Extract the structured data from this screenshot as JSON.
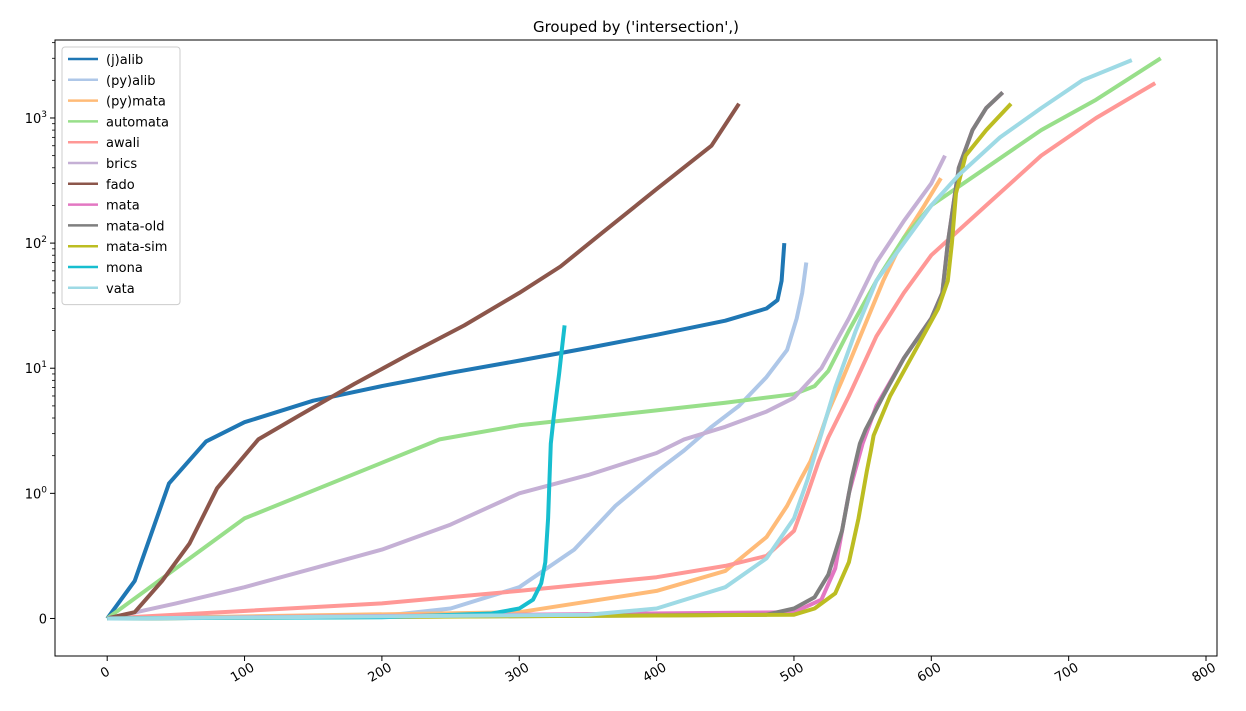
{
  "chart_data": {
    "type": "line",
    "title": "Grouped by ('intersection',)",
    "xlabel": "",
    "ylabel": "",
    "xlim": [
      -38,
      808
    ],
    "x_ticks": [
      0,
      100,
      200,
      300,
      400,
      500,
      600,
      700,
      800
    ],
    "x_tick_labels": [
      "0",
      "100",
      "200",
      "300",
      "400",
      "500",
      "600",
      "700",
      "800"
    ],
    "y_scale": "symlog",
    "y_linthresh": 1,
    "ylim": [
      -0.3,
      4200
    ],
    "y_ticks": [
      0,
      1,
      10,
      100,
      1000
    ],
    "y_tick_labels": [
      "0",
      "10^0",
      "10^1",
      "10^2",
      "10^3"
    ],
    "grid": false,
    "legend_position": "upper-left",
    "series": [
      {
        "name": "(j)alib",
        "color": "#1f77b4",
        "x": [
          0,
          20,
          45,
          72,
          100,
          150,
          200,
          250,
          300,
          350,
          400,
          450,
          480,
          488,
          491,
          493
        ],
        "y": [
          0,
          0.3,
          1.2,
          2.6,
          3.7,
          5.5,
          7.2,
          9.2,
          11.5,
          14.5,
          18.5,
          24,
          30,
          35,
          50,
          100
        ]
      },
      {
        "name": "(py)alib",
        "color": "#aec7e8",
        "x": [
          0,
          200,
          250,
          300,
          340,
          370,
          400,
          420,
          440,
          460,
          480,
          495,
          502,
          506,
          509
        ],
        "y": [
          0,
          0.02,
          0.08,
          0.25,
          0.55,
          0.9,
          1.5,
          2.2,
          3.4,
          5,
          8.5,
          14,
          25,
          40,
          70
        ]
      },
      {
        "name": "(py)mata",
        "color": "#ffbb78",
        "x": [
          0,
          300,
          400,
          450,
          480,
          495,
          505,
          512,
          518,
          525,
          535,
          550,
          565,
          580,
          595,
          607
        ],
        "y": [
          0,
          0.05,
          0.22,
          0.38,
          0.65,
          0.9,
          1.3,
          1.8,
          2.7,
          4.5,
          8,
          20,
          50,
          110,
          200,
          330
        ]
      },
      {
        "name": "automata",
        "color": "#98df8a",
        "x": [
          0,
          100,
          242,
          300,
          400,
          450,
          500,
          515,
          525,
          540,
          560,
          580,
          600,
          640,
          680,
          720,
          767
        ],
        "y": [
          0,
          0.8,
          2.7,
          3.5,
          4.6,
          5.3,
          6.2,
          7.2,
          9.5,
          20,
          50,
          110,
          200,
          400,
          800,
          1400,
          3000
        ]
      },
      {
        "name": "awali",
        "color": "#ff9896",
        "x": [
          0,
          200,
          300,
          400,
          450,
          480,
          500,
          510,
          518,
          525,
          540,
          560,
          580,
          600,
          640,
          680,
          720,
          763
        ],
        "y": [
          0,
          0.12,
          0.22,
          0.33,
          0.42,
          0.5,
          0.7,
          1,
          1.8,
          2.8,
          6,
          18,
          40,
          80,
          200,
          500,
          1000,
          1900
        ]
      },
      {
        "name": "brics",
        "color": "#c5b0d5",
        "x": [
          0,
          50,
          100,
          150,
          200,
          250,
          300,
          350,
          400,
          420,
          450,
          480,
          500,
          520,
          540,
          560,
          580,
          600,
          610
        ],
        "y": [
          0,
          0.12,
          0.25,
          0.4,
          0.55,
          0.75,
          1,
          1.4,
          2.1,
          2.7,
          3.4,
          4.5,
          5.8,
          10,
          25,
          70,
          150,
          300,
          500
        ]
      },
      {
        "name": "fado",
        "color": "#8c564b",
        "x": [
          0,
          20,
          40,
          60,
          80,
          100,
          110,
          140,
          180,
          220,
          260,
          300,
          330,
          360,
          400,
          440,
          460
        ],
        "y": [
          0,
          0.05,
          0.3,
          0.6,
          1.1,
          2,
          2.7,
          4.2,
          7.5,
          13,
          22,
          40,
          65,
          120,
          270,
          600,
          1300
        ]
      },
      {
        "name": "mata",
        "color": "#e377c2",
        "x": [
          0,
          500,
          520,
          530,
          540,
          550,
          560,
          580,
          600,
          608,
          612,
          620,
          630,
          640,
          652
        ],
        "y": [
          0,
          0.05,
          0.15,
          0.4,
          1,
          2.5,
          5,
          12,
          25,
          40,
          100,
          400,
          800,
          1200,
          1600
        ]
      },
      {
        "name": "mata-old",
        "color": "#7f7f7f",
        "x": [
          0,
          480,
          500,
          515,
          525,
          535,
          542,
          548,
          552,
          565,
          580,
          600,
          608,
          612,
          620,
          630,
          640,
          652
        ],
        "y": [
          0,
          0.03,
          0.08,
          0.17,
          0.35,
          0.7,
          1.3,
          2.5,
          3.2,
          6,
          12,
          25,
          40,
          100,
          400,
          800,
          1200,
          1600
        ]
      },
      {
        "name": "mata-sim",
        "color": "#bcbd22",
        "x": [
          0,
          500,
          515,
          530,
          540,
          547,
          553,
          556,
          558,
          570,
          590,
          605,
          612,
          615,
          618,
          625,
          640,
          658
        ],
        "y": [
          0,
          0.03,
          0.08,
          0.2,
          0.45,
          0.8,
          1.5,
          2.2,
          2.9,
          6,
          15,
          30,
          50,
          100,
          250,
          500,
          800,
          1300
        ]
      },
      {
        "name": "mona",
        "color": "#17becf",
        "x": [
          0,
          200,
          280,
          300,
          310,
          316,
          319,
          321,
          322,
          323,
          325,
          327,
          329,
          331,
          333
        ],
        "y": [
          0,
          0.01,
          0.04,
          0.08,
          0.15,
          0.28,
          0.45,
          0.8,
          1.3,
          2.5,
          4,
          6,
          9,
          14,
          22
        ]
      },
      {
        "name": "vata",
        "color": "#9edae5",
        "x": [
          0,
          350,
          400,
          450,
          480,
          500,
          510,
          515,
          520,
          530,
          545,
          560,
          580,
          600,
          620,
          650,
          680,
          710,
          746
        ],
        "y": [
          0,
          0.03,
          0.08,
          0.25,
          0.48,
          0.8,
          1.3,
          2,
          3,
          7,
          20,
          50,
          100,
          200,
          350,
          700,
          1200,
          2000,
          2900
        ]
      }
    ]
  }
}
